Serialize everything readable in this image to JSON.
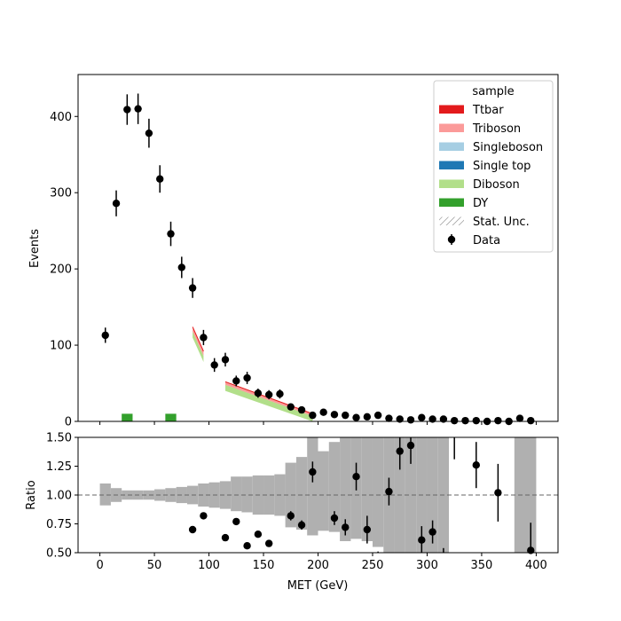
{
  "chart_data": [
    {
      "type": "bar",
      "panel": "main",
      "xlabel": "",
      "ylabel": "Events",
      "xlim": [
        -20,
        420
      ],
      "ylim": [
        0,
        455
      ],
      "xticks": [
        0,
        50,
        100,
        150,
        200,
        250,
        300,
        350,
        400
      ],
      "xtick_labels": [
        "",
        "",
        "",
        "",
        "",
        "",
        "",
        "",
        ""
      ],
      "yticks": [
        0,
        100,
        200,
        300,
        400
      ],
      "ytick_labels": [
        "0",
        "100",
        "200",
        "300",
        "400"
      ],
      "legend": {
        "placement": "top-right",
        "title": "sample",
        "entries": [
          {
            "label": "Ttbar",
            "color": "#e31a1c",
            "kind": "patch"
          },
          {
            "label": "Triboson",
            "color": "#fb9a99",
            "kind": "patch"
          },
          {
            "label": "Singleboson",
            "color": "#a6cee3",
            "kind": "patch"
          },
          {
            "label": "Single top",
            "color": "#1f78b4",
            "kind": "patch"
          },
          {
            "label": "Diboson",
            "color": "#b2df8a",
            "kind": "patch"
          },
          {
            "label": "DY",
            "color": "#33a02c",
            "kind": "patch"
          },
          {
            "label": "Stat. Unc.",
            "color": "#888888",
            "kind": "hatch"
          },
          {
            "label": "Data",
            "color": "#000000",
            "kind": "errorbar"
          }
        ]
      },
      "stack_colors": {
        "DY": "#33a02c",
        "Diboson": "#b2df8a",
        "Single top": "#1f78b4",
        "Singleboson": "#a6cee3",
        "Triboson": "#fb9a99",
        "Ttbar": "#e31a1c"
      },
      "dy_bins": [
        {
          "x0": 20,
          "x1": 30,
          "y": 10
        },
        {
          "x0": 60,
          "x1": 70,
          "y": 10
        }
      ],
      "mc_pieces": [
        {
          "points": [
            [
              85,
              122
            ],
            [
              95,
              90
            ]
          ],
          "diboson": [
            [
              85,
              118
            ],
            [
              95,
              86
            ]
          ],
          "ttbar_top": [
            [
              85,
              124
            ],
            [
              95,
              92
            ]
          ]
        },
        {
          "points": [
            [
              115,
              51
            ],
            [
              195,
              9
            ]
          ],
          "diboson": [
            [
              115,
              48
            ],
            [
              195,
              7
            ]
          ],
          "ttbar_top": [
            [
              115,
              52
            ],
            [
              195,
              10
            ]
          ]
        }
      ],
      "data": {
        "x": [
          5,
          15,
          25,
          35,
          45,
          55,
          65,
          75,
          85,
          95,
          105,
          115,
          125,
          135,
          145,
          155,
          165,
          175,
          185,
          195,
          205,
          215,
          225,
          235,
          245,
          255,
          265,
          275,
          285,
          295,
          305,
          315,
          325,
          335,
          345,
          355,
          365,
          375,
          385,
          395
        ],
        "y": [
          113,
          286,
          409,
          410,
          378,
          318,
          246,
          202,
          175,
          110,
          74,
          81,
          53,
          57,
          37,
          35,
          36,
          19,
          15,
          8,
          12,
          9,
          8,
          5,
          6,
          8,
          4,
          3,
          2,
          5,
          3,
          3,
          1,
          1,
          1,
          0,
          1,
          0,
          4,
          1
        ],
        "err": [
          10,
          17,
          20,
          20,
          19,
          18,
          16,
          14,
          13,
          10,
          9,
          9,
          7,
          8,
          6,
          6,
          6,
          4,
          4,
          3,
          3,
          3,
          3,
          2,
          2,
          3,
          2,
          2,
          1,
          2,
          2,
          2,
          1,
          1,
          1,
          0,
          1,
          0,
          2,
          1
        ]
      }
    },
    {
      "type": "scatter",
      "panel": "ratio",
      "xlabel": "MET (GeV)",
      "ylabel": "Ratio",
      "xlim": [
        -20,
        420
      ],
      "ylim": [
        0.5,
        1.5
      ],
      "xticks": [
        0,
        50,
        100,
        150,
        200,
        250,
        300,
        350,
        400
      ],
      "xtick_labels": [
        "0",
        "50",
        "100",
        "150",
        "200",
        "250",
        "300",
        "350",
        "400"
      ],
      "yticks": [
        0.5,
        0.75,
        1.0,
        1.25,
        1.5
      ],
      "ytick_labels": [
        "0.50",
        "0.75",
        "1.00",
        "1.25",
        "1.50"
      ],
      "reference_line": 1.0,
      "unc_band": {
        "edges": [
          0,
          10,
          20,
          30,
          40,
          50,
          60,
          70,
          80,
          90,
          100,
          110,
          120,
          130,
          140,
          150,
          160,
          170,
          180,
          190,
          200,
          210,
          220,
          230,
          240,
          250,
          260,
          270,
          280,
          290,
          300,
          310,
          320
        ],
        "lo": [
          0.91,
          0.94,
          0.96,
          0.96,
          0.96,
          0.95,
          0.94,
          0.93,
          0.92,
          0.9,
          0.89,
          0.88,
          0.86,
          0.85,
          0.83,
          0.83,
          0.82,
          0.72,
          0.7,
          0.65,
          0.69,
          0.68,
          0.6,
          0.62,
          0.6,
          0.55,
          0.5,
          0.5,
          0.5,
          0.5,
          0.5,
          0.5
        ],
        "hi": [
          1.1,
          1.06,
          1.04,
          1.04,
          1.04,
          1.05,
          1.06,
          1.07,
          1.08,
          1.1,
          1.11,
          1.12,
          1.16,
          1.16,
          1.17,
          1.17,
          1.18,
          1.28,
          1.33,
          1.5,
          1.38,
          1.46,
          1.5,
          1.5,
          1.5,
          1.5,
          1.5,
          1.5,
          1.5,
          1.5,
          1.5,
          1.5
        ]
      },
      "unc_band_extra": [
        {
          "x0": 380,
          "x1": 400,
          "lo": 0.5,
          "hi": 1.5
        }
      ],
      "points": {
        "x": [
          85,
          95,
          115,
          125,
          135,
          145,
          155,
          175,
          185,
          195,
          215,
          225,
          235,
          245,
          265,
          275,
          285,
          295,
          305,
          345,
          365,
          395
        ],
        "y": [
          0.7,
          0.82,
          0.63,
          0.77,
          0.56,
          0.66,
          0.58,
          0.82,
          0.74,
          1.2,
          0.8,
          0.72,
          1.16,
          0.7,
          1.03,
          1.38,
          1.43,
          0.61,
          0.68,
          1.26,
          1.02,
          0.52
        ],
        "err": [
          0,
          0,
          0,
          0,
          0,
          0,
          0,
          0.04,
          0.04,
          0.09,
          0.06,
          0.07,
          0.12,
          0.12,
          0.12,
          0.16,
          0.16,
          0.12,
          0.1,
          0.2,
          0.25,
          0.24
        ]
      },
      "partial_errorbars": [
        {
          "x": 315,
          "y0": 0.5,
          "y1": 0.54
        },
        {
          "x": 325,
          "y0": 1.31,
          "y1": 1.5
        },
        {
          "x": 255,
          "y0": 0.5,
          "y1": 0.51
        }
      ]
    }
  ]
}
